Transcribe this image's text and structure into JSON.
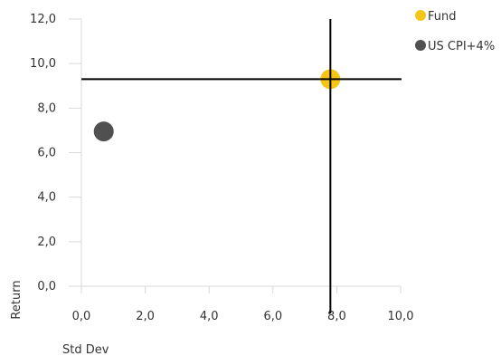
{
  "chart_data": {
    "type": "scatter",
    "title": "",
    "xlabel": "Std Dev",
    "ylabel": "Return",
    "xlim": [
      0,
      10
    ],
    "ylim": [
      0,
      12
    ],
    "x_ticks": [
      "0,0",
      "2,0",
      "4,0",
      "6,0",
      "8,0",
      "10,0"
    ],
    "y_ticks": [
      "0,0",
      "2,0",
      "4,0",
      "6,0",
      "8,0",
      "10,0",
      "12,0"
    ],
    "grid": false,
    "legend_position": "top-right",
    "series": [
      {
        "name": "Fund",
        "color": "#F5C518",
        "points": [
          {
            "x": 7.8,
            "y": 9.3
          }
        ]
      },
      {
        "name": "US CPI+4%",
        "color": "#505050",
        "points": [
          {
            "x": 0.7,
            "y": 6.95
          }
        ]
      }
    ],
    "crosshair": {
      "x": 7.8,
      "y": 9.3,
      "color": "#000000"
    }
  }
}
